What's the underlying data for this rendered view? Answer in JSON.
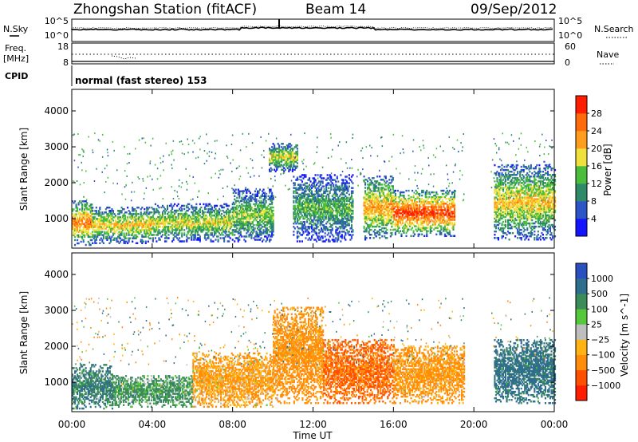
{
  "header": {
    "title": "Zhongshan Station (fitACF)",
    "beam": "Beam 14",
    "date": "09/Sep/2012"
  },
  "status_panels": {
    "nsky_label": "N.Sky",
    "nsky_ticks": [
      "10^5",
      "10^0"
    ],
    "nsearch_label": "N.Search",
    "freq_label_line1": "Freq.",
    "freq_label_line2": "[MHz]",
    "freq_ticks": [
      "18",
      "8"
    ],
    "nave_label": "Nave",
    "nave_ticks": [
      "60",
      "0"
    ],
    "cpid_label": "CPID",
    "cpid_text": "normal (fast stereo) 153"
  },
  "chart_data": [
    {
      "type": "heatmap",
      "title": "",
      "xlabel": "",
      "ylabel": "Slant Range [km]",
      "xlim": [
        "00:00",
        "24:00"
      ],
      "ylim": [
        180,
        4600
      ],
      "yticks": [
        1000,
        2000,
        3000,
        4000
      ],
      "colorbar": {
        "label": "Power [dB]",
        "ticks": [
          4,
          8,
          12,
          16,
          20,
          24,
          28
        ],
        "colors": [
          "#1414ff",
          "#2d55c8",
          "#2f8a6a",
          "#4bbd3c",
          "#f0e03c",
          "#ff9e1e",
          "#ff6a0a",
          "#ff1e00"
        ],
        "range": [
          0,
          32
        ]
      },
      "echo_regions": [
        {
          "t0": 0.0,
          "t1": 1.0,
          "r0": 250,
          "r1": 1500,
          "value": 22
        },
        {
          "t0": 1.0,
          "t1": 4.0,
          "r0": 300,
          "r1": 1300,
          "value": 18
        },
        {
          "t0": 4.0,
          "t1": 8.0,
          "r0": 350,
          "r1": 1400,
          "value": 16
        },
        {
          "t0": 8.0,
          "t1": 10.0,
          "r0": 350,
          "r1": 1800,
          "value": 14
        },
        {
          "t0": 9.8,
          "t1": 11.2,
          "r0": 2300,
          "r1": 3100,
          "value": 16
        },
        {
          "t0": 11.0,
          "t1": 14.0,
          "r0": 350,
          "r1": 2200,
          "value": 12
        },
        {
          "t0": 14.5,
          "t1": 16.0,
          "r0": 400,
          "r1": 2200,
          "value": 20
        },
        {
          "t0": 16.0,
          "t1": 19.0,
          "r0": 500,
          "r1": 1800,
          "value": 26
        },
        {
          "t0": 21.0,
          "t1": 24.0,
          "r0": 400,
          "r1": 2500,
          "value": 18
        }
      ]
    },
    {
      "type": "heatmap",
      "title": "",
      "xlabel": "Time UT",
      "ylabel": "Slant Range [km]",
      "xlim": [
        "00:00",
        "24:00"
      ],
      "ylim": [
        180,
        4600
      ],
      "xticks": [
        "00:00",
        "04:00",
        "08:00",
        "12:00",
        "16:00",
        "20:00",
        "00:00"
      ],
      "yticks": [
        1000,
        2000,
        3000,
        4000
      ],
      "colorbar": {
        "label": "Velocity [m s^-1]",
        "ticks": [
          "1000",
          "500",
          "100",
          "25",
          "−25",
          "−100",
          "−500",
          "−1000"
        ],
        "colors": [
          "#2a4fbf",
          "#2f6e8c",
          "#3c8c5a",
          "#55c83c",
          "#bebebe",
          "#ffb414",
          "#ff8c0a",
          "#ff5000",
          "#ff1e00"
        ]
      },
      "echo_regions": [
        {
          "t0": 0.0,
          "t1": 2.0,
          "r0": 250,
          "r1": 1500,
          "value": 100
        },
        {
          "t0": 2.0,
          "t1": 6.0,
          "r0": 300,
          "r1": 1200,
          "value": 50
        },
        {
          "t0": 6.0,
          "t1": 10.0,
          "r0": 300,
          "r1": 1800,
          "value": -100
        },
        {
          "t0": 10.0,
          "t1": 12.5,
          "r0": 400,
          "r1": 3100,
          "value": -200
        },
        {
          "t0": 12.5,
          "t1": 16.0,
          "r0": 400,
          "r1": 2200,
          "value": -500
        },
        {
          "t0": 16.0,
          "t1": 19.5,
          "r0": 400,
          "r1": 2000,
          "value": -150
        },
        {
          "t0": 21.0,
          "t1": 24.0,
          "r0": 400,
          "r1": 2200,
          "value": 200
        }
      ]
    }
  ]
}
